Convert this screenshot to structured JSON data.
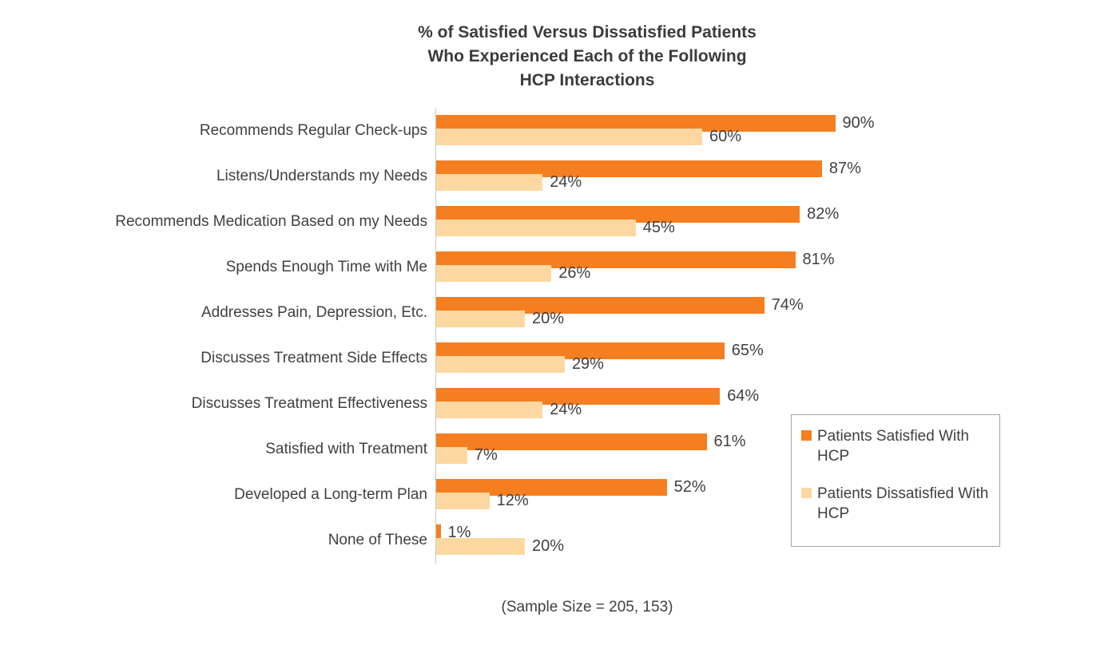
{
  "title": "% of Satisfied Versus Dissatisfied Patients\nWho Experienced Each of the Following\nHCP Interactions",
  "footer": "(Sample Size = 205, 153)",
  "colors": {
    "satisfied": "#F57E20",
    "dissatisfied": "#FCD8A0",
    "axis": "#c7c7c7",
    "text": "#404040"
  },
  "chart_data": {
    "type": "bar",
    "orientation": "horizontal",
    "title": "% of Satisfied Versus Dissatisfied Patients Who Experienced Each of the Following HCP Interactions",
    "categories": [
      "Recommends Regular Check-ups",
      "Listens/Understands my Needs",
      "Recommends Medication Based on my Needs",
      "Spends Enough Time with Me",
      "Addresses Pain, Depression, Etc.",
      "Discusses Treatment Side Effects",
      "Discusses Treatment Effectiveness",
      "Satisfied with Treatment",
      "Developed a Long-term Plan",
      "None of These"
    ],
    "series": [
      {
        "name": "Patients Satisfied With HCP",
        "color": "#F57E20",
        "values": [
          90,
          87,
          82,
          81,
          74,
          65,
          64,
          61,
          52,
          1
        ]
      },
      {
        "name": "Patients Dissatisfied With HCP",
        "color": "#FCD8A0",
        "values": [
          60,
          24,
          45,
          26,
          20,
          29,
          24,
          7,
          12,
          20
        ]
      }
    ],
    "value_suffix": "%",
    "xlim": [
      0,
      100
    ],
    "grid": false,
    "legend_position": "right",
    "data_labels": true,
    "footnote": "(Sample Size = 205, 153)"
  }
}
